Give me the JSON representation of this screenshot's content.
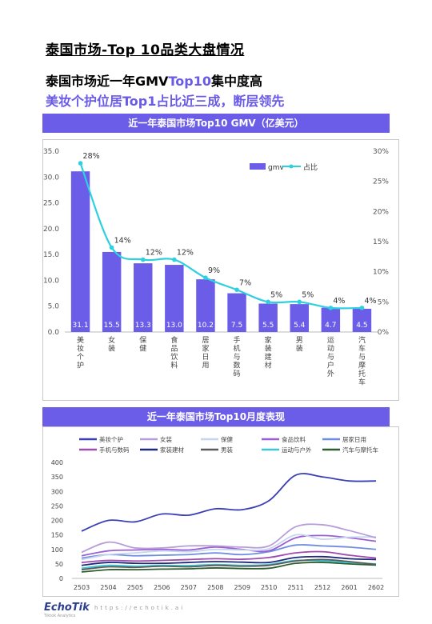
{
  "page": {
    "title": "泰国市场-Top 10品类大盘情况",
    "headline1_prefix": "泰国市场近一年GMV",
    "headline1_accent": "Top10",
    "headline1_suffix": "集中度高",
    "headline2": "美妆个护位居Top1占比近三成，断层领先"
  },
  "footer": {
    "logo": "EchoTik",
    "logo_sub": "Tiktok Analytics",
    "url": "https://echotik.ai"
  },
  "colors": {
    "banner": "#6b5de7",
    "bar": "#6b5de7",
    "share_line": "#2ed0e0",
    "accent_text": "#6a5ae8"
  },
  "chart_data": [
    {
      "type": "bar",
      "title": "近一年泰国市场Top10 GMV（亿美元）",
      "categories": [
        "美妆个护",
        "女装",
        "保健",
        "食品饮料",
        "居家日用",
        "手机与数码",
        "家装建材",
        "男装",
        "运动与户外",
        "汽车与摩托车"
      ],
      "series": [
        {
          "name": "gmv",
          "type": "bar",
          "axis": "left",
          "values": [
            31.1,
            15.5,
            13.3,
            13.0,
            10.2,
            7.5,
            5.5,
            5.4,
            4.7,
            4.5
          ],
          "color": "#6b5de7"
        },
        {
          "name": "占比",
          "type": "line",
          "axis": "right",
          "values": [
            28,
            14,
            12,
            12,
            9,
            7,
            5,
            5,
            4,
            4
          ],
          "labels": [
            "28%",
            "14%",
            "12%",
            "12%",
            "9%",
            "7%",
            "5%",
            "5%",
            "4%",
            "4%"
          ],
          "color": "#2ed0e0"
        }
      ],
      "ylim": [
        0,
        35
      ],
      "yticks": [
        "0.0",
        "5.0",
        "10.0",
        "15.0",
        "20.0",
        "25.0",
        "30.0",
        "35.0"
      ],
      "y2lim": [
        0,
        30
      ],
      "y2ticks": [
        "0%",
        "5%",
        "10%",
        "15%",
        "20%",
        "25%",
        "30%"
      ],
      "legend": "top-right",
      "grid": false
    },
    {
      "type": "line",
      "title": "近一年泰国市场Top10月度表现",
      "x": [
        "2503",
        "2504",
        "2505",
        "2506",
        "2507",
        "2508",
        "2509",
        "2510",
        "2511",
        "2512",
        "2601",
        "2602"
      ],
      "ylim": [
        0,
        400
      ],
      "yticks": [
        "0",
        "50",
        "100",
        "150",
        "200",
        "250",
        "300",
        "350",
        "400"
      ],
      "legend": "top",
      "grid": false,
      "series": [
        {
          "name": "美妆个护",
          "color": "#3a3fb5",
          "values": [
            163,
            200,
            195,
            222,
            218,
            240,
            237,
            268,
            356,
            350,
            336,
            336
          ]
        },
        {
          "name": "女装",
          "color": "#b79ed8",
          "values": [
            90,
            125,
            105,
            105,
            112,
            112,
            108,
            112,
            178,
            185,
            165,
            140
          ]
        },
        {
          "name": "保健",
          "color": "#c6d6ee",
          "values": [
            65,
            82,
            88,
            95,
            92,
            100,
            98,
            102,
            150,
            135,
            142,
            143
          ]
        },
        {
          "name": "食品饮料",
          "color": "#9a5fd4",
          "values": [
            78,
            95,
            98,
            100,
            98,
            108,
            100,
            95,
            140,
            148,
            140,
            128
          ]
        },
        {
          "name": "居家日用",
          "color": "#6f8de0",
          "values": [
            70,
            82,
            78,
            80,
            82,
            88,
            82,
            92,
            115,
            112,
            108,
            100
          ]
        },
        {
          "name": "手机与数码",
          "color": "#a04bb0",
          "values": [
            55,
            62,
            60,
            62,
            65,
            68,
            66,
            72,
            88,
            92,
            80,
            70
          ]
        },
        {
          "name": "家装建材",
          "color": "#1f2a7a",
          "values": [
            45,
            55,
            52,
            52,
            55,
            58,
            56,
            55,
            72,
            75,
            68,
            65
          ]
        },
        {
          "name": "男装",
          "color": "#5a5a5a",
          "values": [
            30,
            40,
            38,
            42,
            40,
            45,
            42,
            45,
            60,
            65,
            58,
            48
          ]
        },
        {
          "name": "运动与户外",
          "color": "#3cc7d6",
          "values": [
            35,
            45,
            42,
            45,
            44,
            48,
            45,
            48,
            62,
            60,
            55,
            50
          ]
        },
        {
          "name": "汽车与摩托车",
          "color": "#2e5d2e",
          "values": [
            22,
            30,
            30,
            32,
            33,
            36,
            34,
            35,
            52,
            55,
            50,
            46
          ]
        }
      ]
    }
  ]
}
